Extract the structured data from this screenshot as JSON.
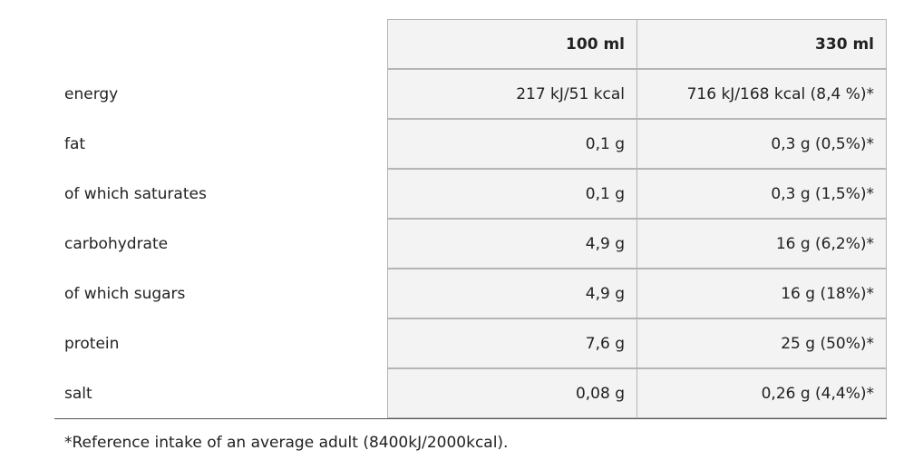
{
  "table": {
    "columns": [
      "100 ml",
      "330 ml"
    ],
    "rows": [
      [
        "energy",
        "217 kJ/51 kcal",
        "716 kJ/168 kcal (8,4 %)*"
      ],
      [
        "fat",
        "0,1 g",
        "0,3 g (0,5%)*"
      ],
      [
        "of which saturates",
        "0,1 g",
        "0,3 g (1,5%)*"
      ],
      [
        "carbohydrate",
        "4,9 g",
        "16 g (6,2%)*"
      ],
      [
        "of which sugars",
        "4,9 g",
        "16 g (18%)*"
      ],
      [
        "protein",
        "7,6 g",
        "25 g (50%)*"
      ],
      [
        "salt",
        "0,08 g",
        "0,26 g (4,4%)*"
      ]
    ]
  },
  "footnote": "*Reference intake of an average adult (8400kJ/2000kcal)."
}
